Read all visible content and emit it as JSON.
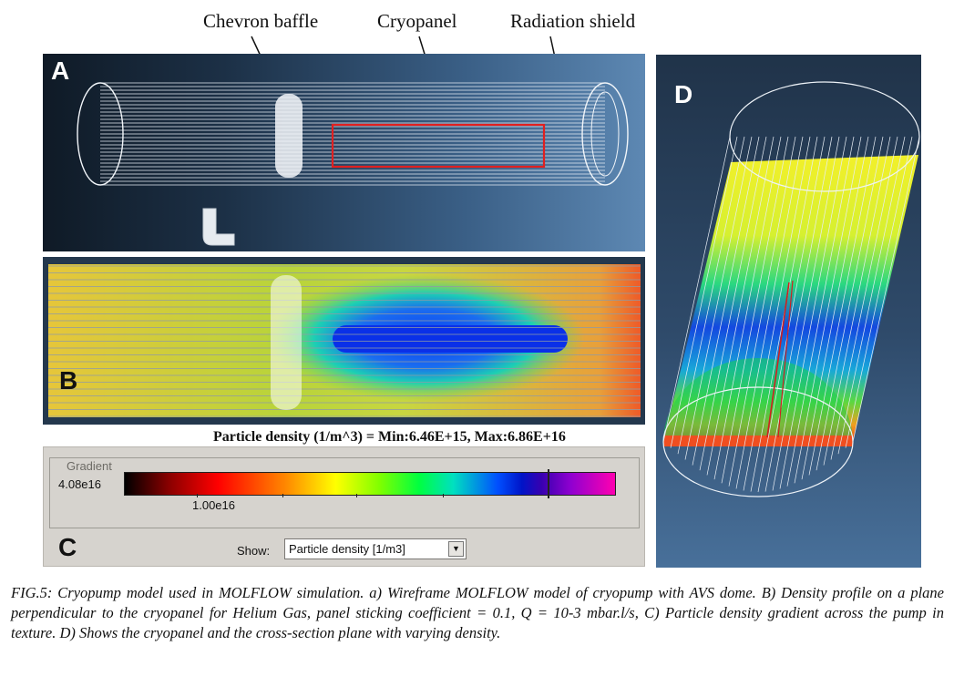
{
  "callouts": {
    "chevron": "Chevron baffle",
    "cryopanel": "Cryopanel",
    "shield": "Radiation shield"
  },
  "panels": {
    "a": "A",
    "b": "B",
    "c": "C",
    "d": "D"
  },
  "density_label": "Particle density (1/m^3) = Min:6.46E+15, Max:6.86E+16",
  "gradient": {
    "title": "Gradient",
    "scale_left": "4.08e16",
    "scale_min": "1.00e16",
    "show_label": "Show:",
    "show_value": "Particle density [1/m3]"
  },
  "caption": "FIG.5: Cryopump model used in MOLFLOW simulation. a) Wireframe MOLFLOW model of cryopump with AVS dome. B) Density profile on a plane perpendicular to the cryopanel for Helium Gas, panel sticking coefficient = 0.1, Q = 10-3 mbar.l/s, C) Particle density gradient across the pump in texture. D) Shows the cryopanel and the cross-section plane with varying density.",
  "colors": {
    "highlight_box": "#e02020",
    "wire": "#e8eef5"
  }
}
